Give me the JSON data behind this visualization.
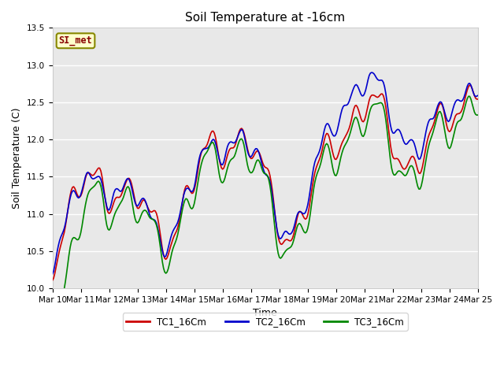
{
  "title": "Soil Temperature at -16cm",
  "xlabel": "Time",
  "ylabel": "Soil Temperature (C)",
  "ylim": [
    10.0,
    13.5
  ],
  "xlim": [
    0,
    360
  ],
  "x_tick_positions": [
    0,
    24,
    48,
    72,
    96,
    120,
    144,
    168,
    192,
    216,
    240,
    264,
    288,
    312,
    336,
    360
  ],
  "x_tick_labels": [
    "Mar 10",
    "Mar 11",
    "Mar 12",
    "Mar 13",
    "Mar 14",
    "Mar 15",
    "Mar 16",
    "Mar 17",
    "Mar 18",
    "Mar 19",
    "Mar 20",
    "Mar 21",
    "Mar 22",
    "Mar 23",
    "Mar 24",
    "Mar 25"
  ],
  "y_ticks": [
    10.0,
    10.5,
    11.0,
    11.5,
    12.0,
    12.5,
    13.0,
    13.5
  ],
  "tc1_color": "#cc0000",
  "tc2_color": "#0000cc",
  "tc3_color": "#008800",
  "tc1_label": "TC1_16Cm",
  "tc2_label": "TC2_16Cm",
  "tc3_label": "TC3_16Cm",
  "legend_label": "SI_met",
  "legend_bg": "#ffffcc",
  "legend_border": "#888800",
  "bg_color": "#ffffff",
  "plot_bg_color": "#e8e8e8",
  "grid_color": "#ffffff",
  "linewidth": 1.2,
  "title_fontsize": 11,
  "axis_fontsize": 9,
  "tick_fontsize": 7.5
}
